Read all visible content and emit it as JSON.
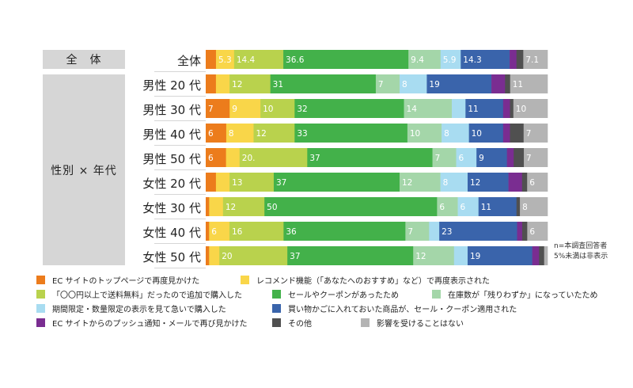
{
  "groups": [
    {
      "label": "全　体"
    },
    {
      "label": "性別 × 年代"
    }
  ],
  "note_lines": [
    "n=本調査回答者",
    "5%未満は非表示"
  ],
  "chart_data": {
    "type": "bar",
    "orientation": "horizontal",
    "stacked": true,
    "categories": [
      "全体",
      "男性 20 代",
      "男性 30 代",
      "男性 40 代",
      "男性 50 代",
      "女性 20 代",
      "女性 30 代",
      "女性 40 代",
      "女性 50 代"
    ],
    "series": [
      {
        "name": "EC サイトのトップページで再度見かけた",
        "color": "#ec7c1c",
        "values": [
          3.0,
          3.0,
          7,
          6,
          6,
          3.0,
          1.0,
          1.0,
          1.0
        ],
        "labels": [
          "",
          "",
          "7",
          "6",
          "6",
          "",
          "",
          "",
          ""
        ]
      },
      {
        "name": "レコメンド機能（「あなたへのおすすめ」など）で再度表示された",
        "color": "#f9d649",
        "values": [
          5.3,
          4.0,
          9,
          8,
          4.0,
          4.0,
          4.0,
          6,
          3.0
        ],
        "labels": [
          "5.3",
          "",
          "9",
          "8",
          "",
          "",
          "",
          "6",
          ""
        ]
      },
      {
        "name": "「〇〇円以上で送料無料」だったので追加で購入した",
        "color": "#b9d24d",
        "values": [
          14.4,
          12,
          10,
          12,
          20.0,
          13,
          12,
          16,
          20
        ],
        "labels": [
          "14.4",
          "12",
          "10",
          "12",
          "20.",
          "13",
          "12",
          "16",
          "20"
        ]
      },
      {
        "name": "セールやクーポンがあったため",
        "color": "#43b14a",
        "values": [
          36.6,
          31,
          32,
          33,
          37,
          37,
          50,
          36,
          37
        ],
        "labels": [
          "36.6",
          "31",
          "32",
          "33",
          "37",
          "37",
          "50",
          "36",
          "37"
        ]
      },
      {
        "name": "在庫数が「残りわずか」になっていたため",
        "color": "#a4d6a9",
        "values": [
          9.4,
          7,
          14,
          10,
          7,
          12,
          6,
          7,
          12
        ],
        "labels": [
          "9.4",
          "7",
          "14",
          "10",
          "7",
          "12",
          "6",
          "7",
          "12"
        ]
      },
      {
        "name": "期間限定・数量限定の表示を見て急いで購入した",
        "color": "#a8dcf1",
        "values": [
          5.9,
          8,
          4.0,
          8,
          6,
          8,
          6,
          3.0,
          4.0
        ],
        "labels": [
          "5.9",
          "8",
          "",
          "8",
          "6",
          "8",
          "6",
          "",
          ""
        ]
      },
      {
        "name": "買い物かごに入れておいた商品が、セール・クーポン適用された",
        "color": "#3a64ab",
        "values": [
          14.3,
          19,
          11,
          10,
          9,
          12,
          11,
          23,
          19
        ],
        "labels": [
          "14.3",
          "19",
          "11",
          "10",
          "9",
          "12",
          "11",
          "23",
          "19"
        ]
      },
      {
        "name": "EC サイトからのプッシュ通知・メールで再び見かけた",
        "color": "#7a2d91",
        "values": [
          2.0,
          4.0,
          2.0,
          2.0,
          2.0,
          4.0,
          0,
          1.5,
          2.0
        ],
        "labels": [
          "",
          "",
          "",
          "",
          "",
          "",
          "",
          "",
          ""
        ]
      },
      {
        "name": "その他",
        "color": "#505050",
        "values": [
          2.0,
          1.5,
          1.0,
          4.0,
          3.0,
          1.5,
          1.0,
          1.5,
          1.5
        ],
        "labels": [
          "",
          "",
          "",
          "",
          "",
          "",
          "",
          "",
          ""
        ]
      },
      {
        "name": "影響を受けることはない",
        "color": "#b4b4b4",
        "values": [
          7.1,
          11,
          10,
          7,
          7,
          6,
          8,
          6,
          1.0
        ],
        "labels": [
          "7.1",
          "11",
          "10",
          "7",
          "7",
          "6",
          "8",
          "6",
          ""
        ]
      }
    ],
    "group_rows": [
      [
        0,
        0
      ],
      [
        1,
        8
      ]
    ],
    "xlim": [
      0,
      100
    ]
  }
}
